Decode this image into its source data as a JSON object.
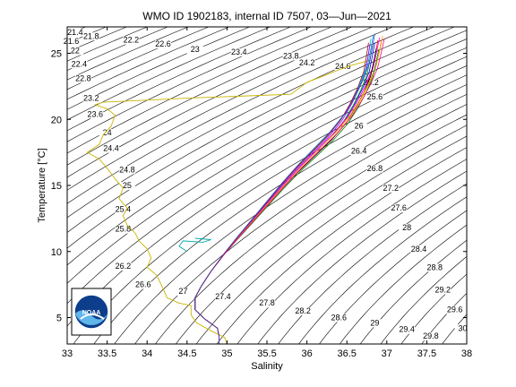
{
  "chart_data": {
    "type": "line",
    "title": "WMO ID 1902183, internal ID 7507, 03—Jun—2021",
    "xlabel": "Salinity",
    "ylabel": "Temperature [°C]",
    "xlim": [
      33,
      38
    ],
    "ylim": [
      3,
      27
    ],
    "xticks": [
      "33",
      "33.5",
      "34",
      "34.5",
      "35",
      "35.5",
      "36",
      "36.5",
      "37",
      "37.5",
      "38"
    ],
    "yticks": [
      "5",
      "10",
      "15",
      "20",
      "25"
    ],
    "isopycnals": [
      {
        "label": "21.4",
        "s": 33.1,
        "t": 26.4
      },
      {
        "label": "21.6",
        "s": 33.05,
        "t": 25.7
      },
      {
        "label": "21.8",
        "s": 33.3,
        "t": 26.1
      },
      {
        "label": "22",
        "s": 33.1,
        "t": 25.0
      },
      {
        "label": "22.2",
        "s": 33.8,
        "t": 25.8
      },
      {
        "label": "22.4",
        "s": 33.15,
        "t": 24.0
      },
      {
        "label": "22.6",
        "s": 34.2,
        "t": 25.5
      },
      {
        "label": "22.8",
        "s": 33.2,
        "t": 22.9
      },
      {
        "label": "23",
        "s": 34.6,
        "t": 25.1
      },
      {
        "label": "23.2",
        "s": 33.3,
        "t": 21.4
      },
      {
        "label": "23.4",
        "s": 35.15,
        "t": 24.9
      },
      {
        "label": "23.6",
        "s": 33.35,
        "t": 20.2
      },
      {
        "label": "23.8",
        "s": 35.8,
        "t": 24.6
      },
      {
        "label": "24",
        "s": 33.5,
        "t": 18.8
      },
      {
        "label": "24.2",
        "s": 36.0,
        "t": 24.1
      },
      {
        "label": "24.4",
        "s": 33.55,
        "t": 17.6
      },
      {
        "label": "24.6",
        "s": 36.45,
        "t": 23.8
      },
      {
        "label": "24.8",
        "s": 33.75,
        "t": 16.0
      },
      {
        "label": "25",
        "s": 33.75,
        "t": 14.8
      },
      {
        "label": "25.2",
        "s": 36.8,
        "t": 22.6
      },
      {
        "label": "25.4",
        "s": 33.7,
        "t": 13.0
      },
      {
        "label": "25.6",
        "s": 36.85,
        "t": 21.5
      },
      {
        "label": "25.8",
        "s": 33.7,
        "t": 11.5
      },
      {
        "label": "26",
        "s": 36.65,
        "t": 19.3
      },
      {
        "label": "26.2",
        "s": 33.7,
        "t": 8.7
      },
      {
        "label": "26.4",
        "s": 36.65,
        "t": 17.4
      },
      {
        "label": "26.6",
        "s": 33.95,
        "t": 7.3
      },
      {
        "label": "26.8",
        "s": 36.85,
        "t": 16.1
      },
      {
        "label": "27",
        "s": 34.45,
        "t": 6.8
      },
      {
        "label": "27.2",
        "s": 37.05,
        "t": 14.6
      },
      {
        "label": "27.4",
        "s": 34.95,
        "t": 6.4
      },
      {
        "label": "27.6",
        "s": 37.15,
        "t": 13.1
      },
      {
        "label": "27.8",
        "s": 35.5,
        "t": 5.9
      },
      {
        "label": "28",
        "s": 37.25,
        "t": 11.6
      },
      {
        "label": "28.2",
        "s": 35.95,
        "t": 5.3
      },
      {
        "label": "28.4",
        "s": 37.4,
        "t": 10.0
      },
      {
        "label": "28.6",
        "s": 36.4,
        "t": 4.8
      },
      {
        "label": "28.8",
        "s": 37.6,
        "t": 8.6
      },
      {
        "label": "29",
        "s": 36.85,
        "t": 4.4
      },
      {
        "label": "29.2",
        "s": 37.7,
        "t": 6.9
      },
      {
        "label": "29.4",
        "s": 37.25,
        "t": 3.9
      },
      {
        "label": "29.6",
        "s": 37.85,
        "t": 5.4
      },
      {
        "label": "29.8",
        "s": 37.55,
        "t": 3.4
      },
      {
        "label": "30",
        "s": 37.95,
        "t": 4.0
      }
    ],
    "surface_profile": [
      [
        35.0,
        3.0
      ],
      [
        34.97,
        3.5
      ],
      [
        34.8,
        4.0
      ],
      [
        34.62,
        4.6
      ],
      [
        34.55,
        5.2
      ],
      [
        34.55,
        5.9
      ],
      [
        34.4,
        6.1
      ],
      [
        34.25,
        6.5
      ],
      [
        34.2,
        7.2
      ],
      [
        34.12,
        8.2
      ],
      [
        34.0,
        8.8
      ],
      [
        34.05,
        9.5
      ],
      [
        34.0,
        10.2
      ],
      [
        33.9,
        10.8
      ],
      [
        33.85,
        11.4
      ],
      [
        33.75,
        12.0
      ],
      [
        33.7,
        12.7
      ],
      [
        33.75,
        13.3
      ],
      [
        33.65,
        14.0
      ],
      [
        33.7,
        14.8
      ],
      [
        33.6,
        15.5
      ],
      [
        33.5,
        16.3
      ],
      [
        33.4,
        17.0
      ],
      [
        33.25,
        17.5
      ],
      [
        33.4,
        18.1
      ],
      [
        33.45,
        18.8
      ],
      [
        33.55,
        19.5
      ],
      [
        33.6,
        20.3
      ],
      [
        33.5,
        20.8
      ],
      [
        33.35,
        21.1
      ],
      [
        33.45,
        21.3
      ],
      [
        34.5,
        21.6
      ],
      [
        35.8,
        21.9
      ],
      [
        36.0,
        22.8
      ],
      [
        36.3,
        23.5
      ],
      [
        36.5,
        24.0
      ],
      [
        36.8,
        24.5
      ]
    ],
    "cyan_branch": [
      [
        34.5,
        10.0
      ],
      [
        34.4,
        10.4
      ],
      [
        34.45,
        10.8
      ],
      [
        34.7,
        10.7
      ],
      [
        34.8,
        10.9
      ],
      [
        34.6,
        11.0
      ]
    ],
    "profiles": [
      {
        "color": "#0000ff",
        "dx": 0.0,
        "dy": 0.0
      },
      {
        "color": "#ff0000",
        "dx": 0.04,
        "dy": 0.2
      },
      {
        "color": "#00aa00",
        "dx": -0.03,
        "dy": -0.2
      },
      {
        "color": "#ff00ff",
        "dx": 0.06,
        "dy": 0.4
      },
      {
        "color": "#00cccc",
        "dx": -0.05,
        "dy": 0.3
      },
      {
        "color": "#000000",
        "dx": 0.02,
        "dy": -0.4
      },
      {
        "color": "#cccc00",
        "dx": 0.08,
        "dy": 0.1
      },
      {
        "color": "#8800ff",
        "dx": -0.06,
        "dy": -0.1
      },
      {
        "color": "#ff8800",
        "dx": 0.1,
        "dy": 0.5
      },
      {
        "color": "#0088ff",
        "dx": -0.02,
        "dy": 0.6
      },
      {
        "color": "#008800",
        "dx": 0.05,
        "dy": -0.5
      },
      {
        "color": "#aa0000",
        "dx": -0.08,
        "dy": 0.0
      },
      {
        "color": "#ff0088",
        "dx": 0.12,
        "dy": 0.3
      },
      {
        "color": "#4444aa",
        "dx": 0.0,
        "dy": 0.7
      }
    ],
    "base_profile": [
      [
        34.9,
        3.0
      ],
      [
        34.9,
        3.6
      ],
      [
        34.88,
        4.2
      ],
      [
        34.72,
        4.9
      ],
      [
        34.6,
        5.6
      ],
      [
        34.6,
        6.5
      ],
      [
        34.68,
        7.4
      ],
      [
        34.8,
        8.5
      ],
      [
        34.95,
        9.7
      ],
      [
        35.1,
        10.8
      ],
      [
        35.3,
        12.2
      ],
      [
        35.5,
        13.6
      ],
      [
        35.7,
        15.0
      ],
      [
        35.9,
        16.3
      ],
      [
        36.1,
        17.5
      ],
      [
        36.3,
        18.7
      ],
      [
        36.48,
        20.0
      ],
      [
        36.6,
        21.2
      ],
      [
        36.7,
        22.4
      ],
      [
        36.78,
        23.6
      ],
      [
        36.82,
        24.8
      ],
      [
        36.85,
        25.8
      ]
    ]
  },
  "logo": {
    "text": "NOAA"
  }
}
